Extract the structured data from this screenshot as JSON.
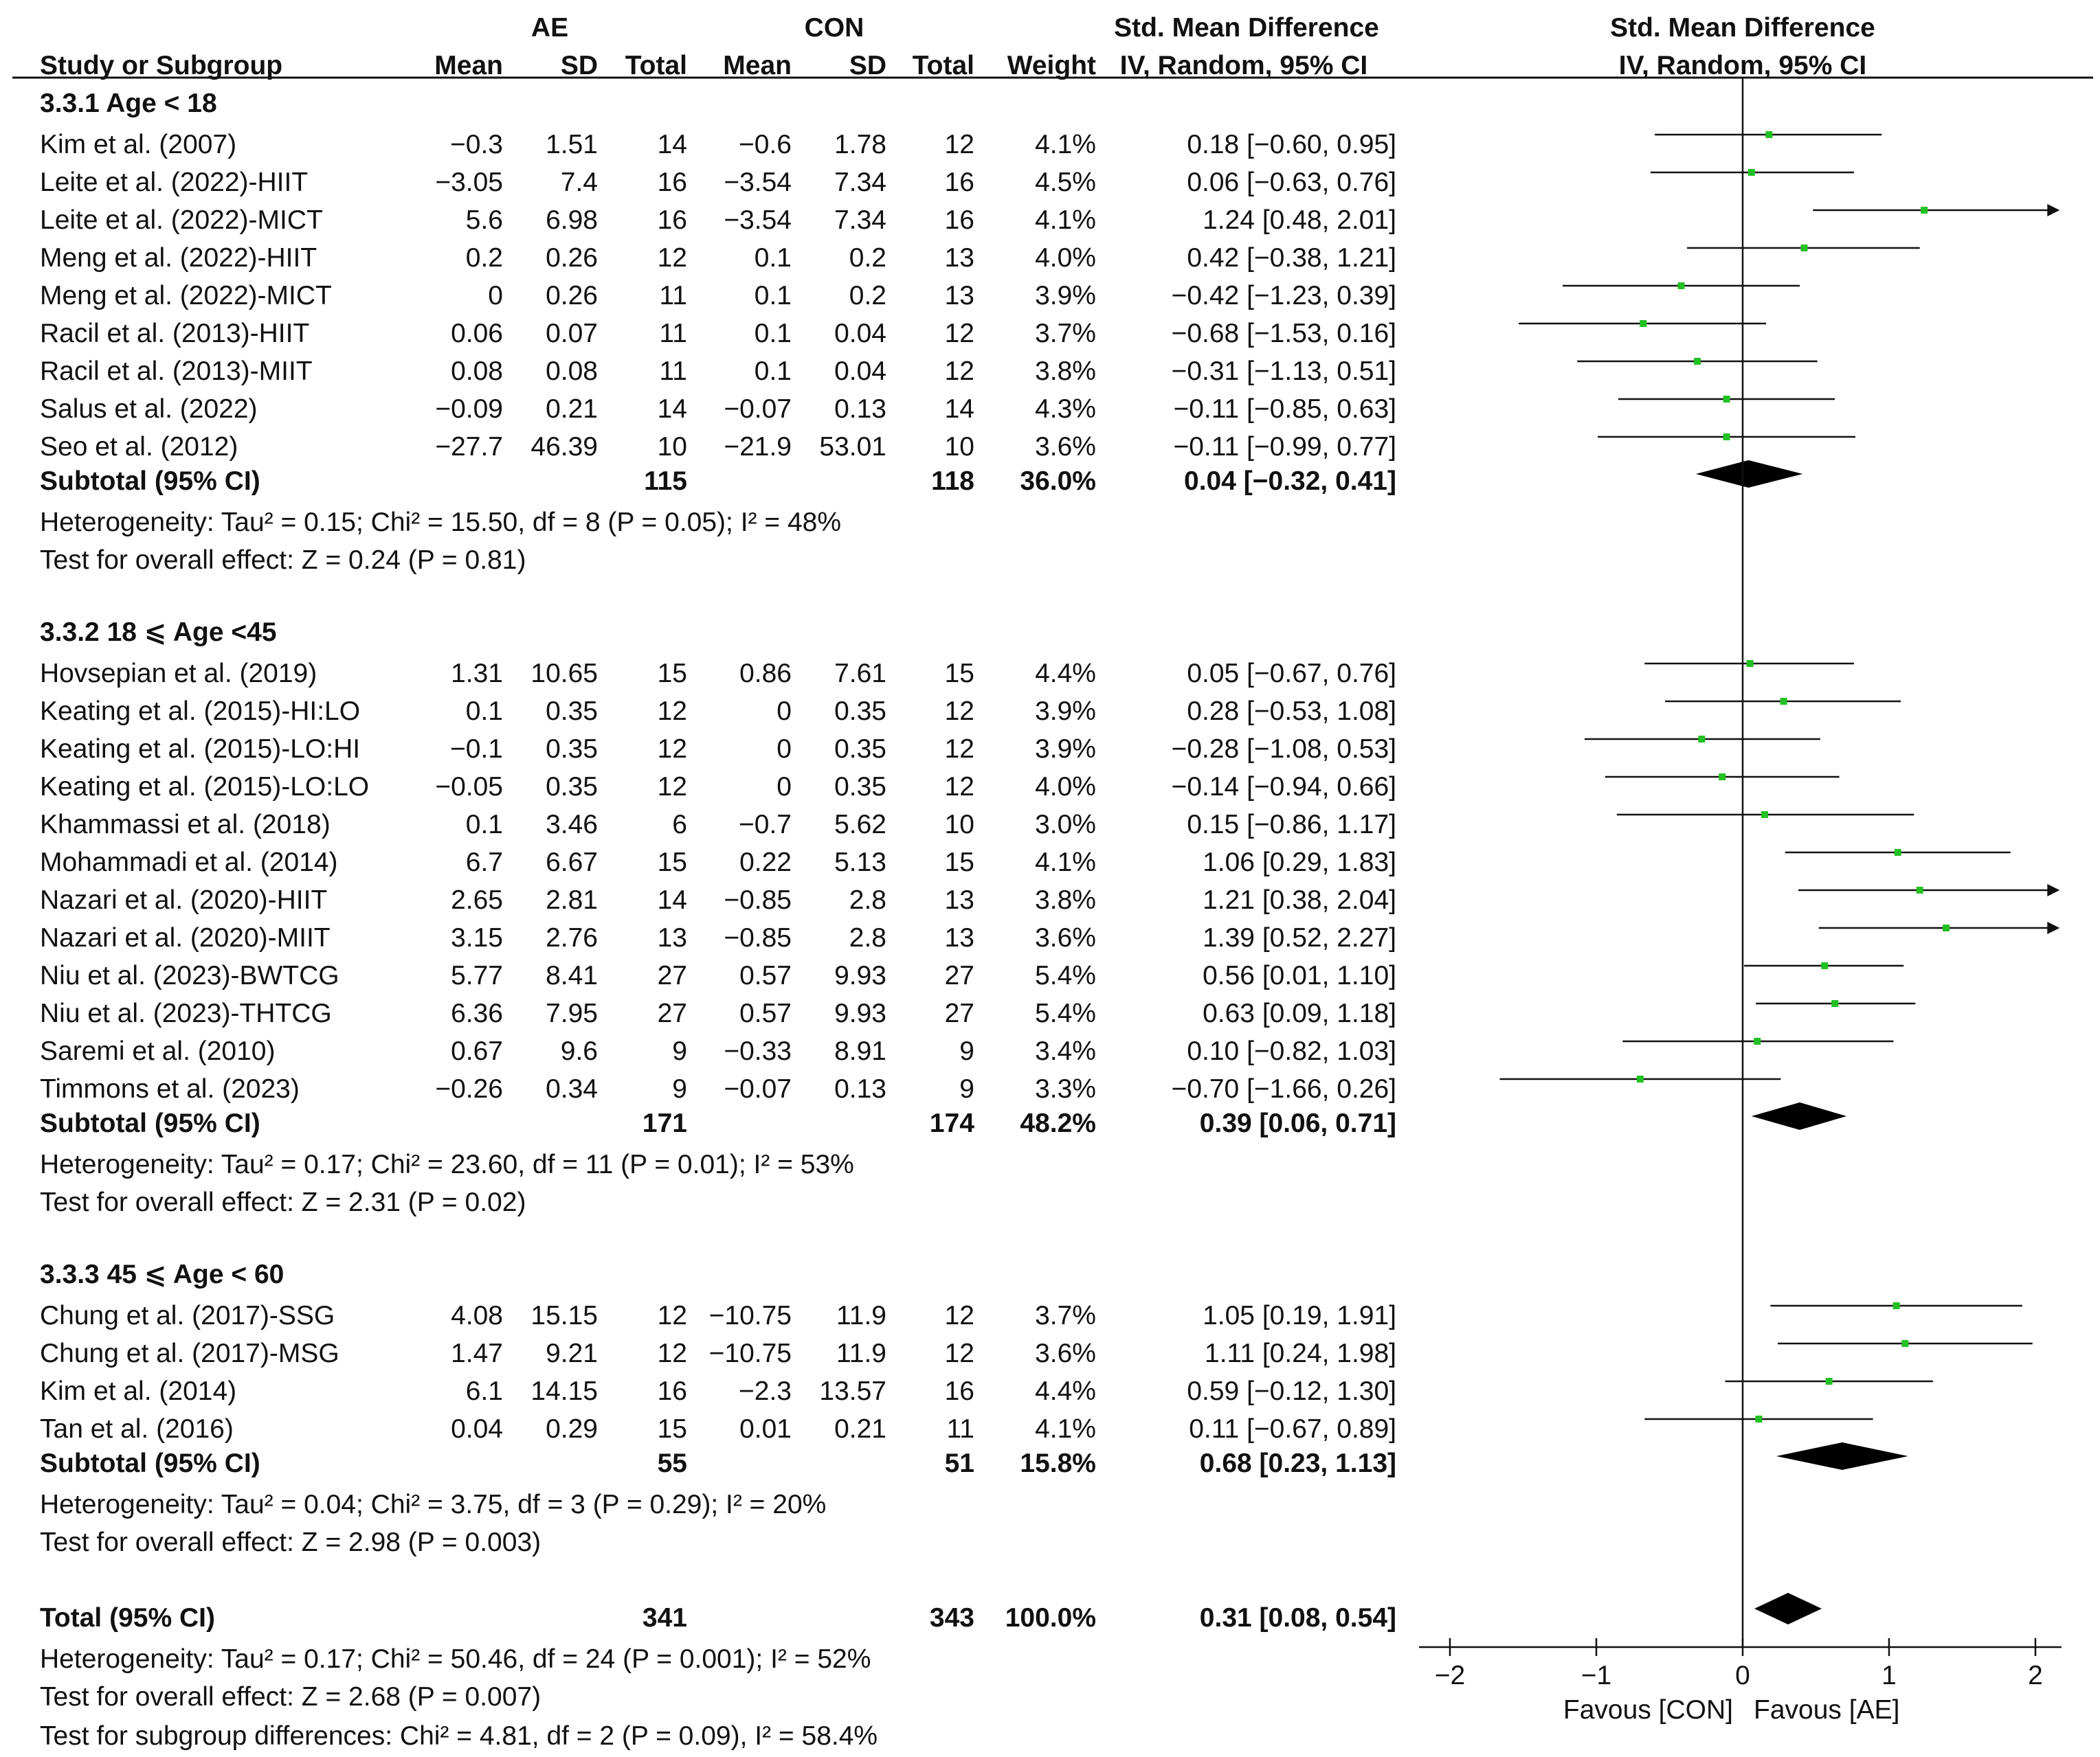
{
  "header": {
    "ae": "AE",
    "con": "CON",
    "smd_left": "Std. Mean Difference",
    "smd_right": "Std. Mean Difference",
    "col_study": "Study or Subgroup",
    "col_mean_ae": "Mean",
    "col_sd_ae": "SD",
    "col_total_ae": "Total",
    "col_mean_con": "Mean",
    "col_sd_con": "SD",
    "col_total_con": "Total",
    "col_weight": "Weight",
    "col_ci_left": "IV, Random, 95% CI",
    "col_ci_right": "IV, Random, 95% CI"
  },
  "subgroups": [
    {
      "title": "3.3.1 Age < 18",
      "studies": [
        {
          "name": "Kim et al. (2007)",
          "ae_mean": "−0.3",
          "ae_sd": "1.51",
          "ae_total": "14",
          "con_mean": "−0.6",
          "con_sd": "1.78",
          "con_total": "12",
          "weight": "4.1%",
          "ci": "0.18 [−0.60, 0.95]"
        },
        {
          "name": "Leite et al. (2022)-HIIT",
          "ae_mean": "−3.05",
          "ae_sd": "7.4",
          "ae_total": "16",
          "con_mean": "−3.54",
          "con_sd": "7.34",
          "con_total": "16",
          "weight": "4.5%",
          "ci": "0.06 [−0.63, 0.76]"
        },
        {
          "name": "Leite et al. (2022)-MICT",
          "ae_mean": "5.6",
          "ae_sd": "6.98",
          "ae_total": "16",
          "con_mean": "−3.54",
          "con_sd": "7.34",
          "con_total": "16",
          "weight": "4.1%",
          "ci": "1.24 [0.48, 2.01]"
        },
        {
          "name": "Meng et al. (2022)-HIIT",
          "ae_mean": "0.2",
          "ae_sd": "0.26",
          "ae_total": "12",
          "con_mean": "0.1",
          "con_sd": "0.2",
          "con_total": "13",
          "weight": "4.0%",
          "ci": "0.42 [−0.38, 1.21]"
        },
        {
          "name": "Meng et al. (2022)-MICT",
          "ae_mean": "0",
          "ae_sd": "0.26",
          "ae_total": "11",
          "con_mean": "0.1",
          "con_sd": "0.2",
          "con_total": "13",
          "weight": "3.9%",
          "ci": "−0.42 [−1.23, 0.39]"
        },
        {
          "name": "Racil et al. (2013)-HIIT",
          "ae_mean": "0.06",
          "ae_sd": "0.07",
          "ae_total": "11",
          "con_mean": "0.1",
          "con_sd": "0.04",
          "con_total": "12",
          "weight": "3.7%",
          "ci": "−0.68 [−1.53, 0.16]"
        },
        {
          "name": "Racil et al. (2013)-MIIT",
          "ae_mean": "0.08",
          "ae_sd": "0.08",
          "ae_total": "11",
          "con_mean": "0.1",
          "con_sd": "0.04",
          "con_total": "12",
          "weight": "3.8%",
          "ci": "−0.31 [−1.13, 0.51]"
        },
        {
          "name": "Salus et al. (2022)",
          "ae_mean": "−0.09",
          "ae_sd": "0.21",
          "ae_total": "14",
          "con_mean": "−0.07",
          "con_sd": "0.13",
          "con_total": "14",
          "weight": "4.3%",
          "ci": "−0.11 [−0.85, 0.63]"
        },
        {
          "name": "Seo et al. (2012)",
          "ae_mean": "−27.7",
          "ae_sd": "46.39",
          "ae_total": "10",
          "con_mean": "−21.9",
          "con_sd": "53.01",
          "con_total": "10",
          "weight": "3.6%",
          "ci": "−0.11 [−0.99, 0.77]"
        }
      ],
      "subtotal": {
        "label": "Subtotal (95% CI)",
        "ae_total": "115",
        "con_total": "118",
        "weight": "36.0%",
        "ci": "0.04 [−0.32, 0.41]"
      },
      "heterogeneity": "Heterogeneity: Tau² = 0.15; Chi² = 15.50, df = 8 (P = 0.05); I² = 48%",
      "overall": "Test for overall effect: Z = 0.24 (P = 0.81)"
    },
    {
      "title": "3.3.2 18 ⩽ Age <45",
      "studies": [
        {
          "name": "Hovsepian et al. (2019)",
          "ae_mean": "1.31",
          "ae_sd": "10.65",
          "ae_total": "15",
          "con_mean": "0.86",
          "con_sd": "7.61",
          "con_total": "15",
          "weight": "4.4%",
          "ci": "0.05 [−0.67, 0.76]"
        },
        {
          "name": "Keating et al. (2015)-HI:LO",
          "ae_mean": "0.1",
          "ae_sd": "0.35",
          "ae_total": "12",
          "con_mean": "0",
          "con_sd": "0.35",
          "con_total": "12",
          "weight": "3.9%",
          "ci": "0.28 [−0.53, 1.08]"
        },
        {
          "name": "Keating et al. (2015)-LO:HI",
          "ae_mean": "−0.1",
          "ae_sd": "0.35",
          "ae_total": "12",
          "con_mean": "0",
          "con_sd": "0.35",
          "con_total": "12",
          "weight": "3.9%",
          "ci": "−0.28 [−1.08, 0.53]"
        },
        {
          "name": "Keating et al. (2015)-LO:LO",
          "ae_mean": "−0.05",
          "ae_sd": "0.35",
          "ae_total": "12",
          "con_mean": "0",
          "con_sd": "0.35",
          "con_total": "12",
          "weight": "4.0%",
          "ci": "−0.14 [−0.94, 0.66]"
        },
        {
          "name": "Khammassi et al. (2018)",
          "ae_mean": "0.1",
          "ae_sd": "3.46",
          "ae_total": "6",
          "con_mean": "−0.7",
          "con_sd": "5.62",
          "con_total": "10",
          "weight": "3.0%",
          "ci": "0.15 [−0.86, 1.17]"
        },
        {
          "name": "Mohammadi et al. (2014)",
          "ae_mean": "6.7",
          "ae_sd": "6.67",
          "ae_total": "15",
          "con_mean": "0.22",
          "con_sd": "5.13",
          "con_total": "15",
          "weight": "4.1%",
          "ci": "1.06 [0.29, 1.83]"
        },
        {
          "name": "Nazari et al. (2020)-HIIT",
          "ae_mean": "2.65",
          "ae_sd": "2.81",
          "ae_total": "14",
          "con_mean": "−0.85",
          "con_sd": "2.8",
          "con_total": "13",
          "weight": "3.8%",
          "ci": "1.21 [0.38, 2.04]"
        },
        {
          "name": "Nazari et al. (2020)-MIIT",
          "ae_mean": "3.15",
          "ae_sd": "2.76",
          "ae_total": "13",
          "con_mean": "−0.85",
          "con_sd": "2.8",
          "con_total": "13",
          "weight": "3.6%",
          "ci": "1.39 [0.52, 2.27]"
        },
        {
          "name": "Niu et al. (2023)-BWTCG",
          "ae_mean": "5.77",
          "ae_sd": "8.41",
          "ae_total": "27",
          "con_mean": "0.57",
          "con_sd": "9.93",
          "con_total": "27",
          "weight": "5.4%",
          "ci": "0.56 [0.01, 1.10]"
        },
        {
          "name": "Niu et al. (2023)-THTCG",
          "ae_mean": "6.36",
          "ae_sd": "7.95",
          "ae_total": "27",
          "con_mean": "0.57",
          "con_sd": "9.93",
          "con_total": "27",
          "weight": "5.4%",
          "ci": "0.63 [0.09, 1.18]"
        },
        {
          "name": "Saremi et al. (2010)",
          "ae_mean": "0.67",
          "ae_sd": "9.6",
          "ae_total": "9",
          "con_mean": "−0.33",
          "con_sd": "8.91",
          "con_total": "9",
          "weight": "3.4%",
          "ci": "0.10 [−0.82, 1.03]"
        },
        {
          "name": "Timmons et al. (2023)",
          "ae_mean": "−0.26",
          "ae_sd": "0.34",
          "ae_total": "9",
          "con_mean": "−0.07",
          "con_sd": "0.13",
          "con_total": "9",
          "weight": "3.3%",
          "ci": "−0.70 [−1.66, 0.26]"
        }
      ],
      "subtotal": {
        "label": "Subtotal (95% CI)",
        "ae_total": "171",
        "con_total": "174",
        "weight": "48.2%",
        "ci": "0.39 [0.06, 0.71]"
      },
      "heterogeneity": "Heterogeneity: Tau² = 0.17; Chi² = 23.60, df = 11 (P = 0.01); I² = 53%",
      "overall": "Test for overall effect: Z = 2.31 (P = 0.02)"
    },
    {
      "title": "3.3.3 45 ⩽ Age < 60",
      "studies": [
        {
          "name": "Chung et al. (2017)-SSG",
          "ae_mean": "4.08",
          "ae_sd": "15.15",
          "ae_total": "12",
          "con_mean": "−10.75",
          "con_sd": "11.9",
          "con_total": "12",
          "weight": "3.7%",
          "ci": "1.05 [0.19, 1.91]"
        },
        {
          "name": "Chung et al. (2017)-MSG",
          "ae_mean": "1.47",
          "ae_sd": "9.21",
          "ae_total": "12",
          "con_mean": "−10.75",
          "con_sd": "11.9",
          "con_total": "12",
          "weight": "3.6%",
          "ci": "1.11 [0.24, 1.98]"
        },
        {
          "name": "Kim et al. (2014)",
          "ae_mean": "6.1",
          "ae_sd": "14.15",
          "ae_total": "16",
          "con_mean": "−2.3",
          "con_sd": "13.57",
          "con_total": "16",
          "weight": "4.4%",
          "ci": "0.59 [−0.12, 1.30]"
        },
        {
          "name": "Tan et al. (2016)",
          "ae_mean": "0.04",
          "ae_sd": "0.29",
          "ae_total": "15",
          "con_mean": "0.01",
          "con_sd": "0.21",
          "con_total": "11",
          "weight": "4.1%",
          "ci": "0.11 [−0.67, 0.89]"
        }
      ],
      "subtotal": {
        "label": "Subtotal (95% CI)",
        "ae_total": "55",
        "con_total": "51",
        "weight": "15.8%",
        "ci": "0.68 [0.23, 1.13]"
      },
      "heterogeneity": "Heterogeneity: Tau² = 0.04; Chi² = 3.75, df = 3 (P = 0.29); I² = 20%",
      "overall": "Test for overall effect: Z = 2.98 (P = 0.003)"
    }
  ],
  "total": {
    "label": "Total (95% CI)",
    "ae_total": "341",
    "con_total": "343",
    "weight": "100.0%",
    "ci": "0.31 [0.08, 0.54]"
  },
  "total_heterogeneity": "Heterogeneity: Tau² = 0.17; Chi² = 50.46, df = 24 (P = 0.001); I² = 52%",
  "total_overall": "Test for overall effect: Z = 2.68 (P = 0.007)",
  "subgroup_diff": "Test for subgroup differences: Chi² = 4.81, df = 2 (P = 0.09), I² = 58.4%",
  "chart_data": {
    "type": "forest",
    "title": "Std. Mean Difference IV, Random, 95% CI",
    "xlim": [
      -2,
      2
    ],
    "xticks": [
      -2,
      -1,
      0,
      1,
      2
    ],
    "xtick_labels": [
      "−2",
      "−1",
      "0",
      "1",
      "2"
    ],
    "favours_left": "Favous [CON]",
    "favours_right": "Favous [AE]",
    "point_color": "#22c022",
    "series": [
      {
        "name": "3.3.1 Age < 18",
        "points": [
          [
            0.18,
            -0.6,
            0.95
          ],
          [
            0.06,
            -0.63,
            0.76
          ],
          [
            1.24,
            0.48,
            2.01
          ],
          [
            0.42,
            -0.38,
            1.21
          ],
          [
            -0.42,
            -1.23,
            0.39
          ],
          [
            -0.68,
            -1.53,
            0.16
          ],
          [
            -0.31,
            -1.13,
            0.51
          ],
          [
            -0.11,
            -0.85,
            0.63
          ],
          [
            -0.11,
            -0.99,
            0.77
          ]
        ],
        "pooled": [
          0.04,
          -0.32,
          0.41
        ]
      },
      {
        "name": "3.3.2 18 <= Age < 45",
        "points": [
          [
            0.05,
            -0.67,
            0.76
          ],
          [
            0.28,
            -0.53,
            1.08
          ],
          [
            -0.28,
            -1.08,
            0.53
          ],
          [
            -0.14,
            -0.94,
            0.66
          ],
          [
            0.15,
            -0.86,
            1.17
          ],
          [
            1.06,
            0.29,
            1.83
          ],
          [
            1.21,
            0.38,
            2.04
          ],
          [
            1.39,
            0.52,
            2.27
          ],
          [
            0.56,
            0.01,
            1.1
          ],
          [
            0.63,
            0.09,
            1.18
          ],
          [
            0.1,
            -0.82,
            1.03
          ],
          [
            -0.7,
            -1.66,
            0.26
          ]
        ],
        "pooled": [
          0.39,
          0.06,
          0.71
        ]
      },
      {
        "name": "3.3.3 45 <= Age < 60",
        "points": [
          [
            1.05,
            0.19,
            1.91
          ],
          [
            1.11,
            0.24,
            1.98
          ],
          [
            0.59,
            -0.12,
            1.3
          ],
          [
            0.11,
            -0.67,
            0.89
          ]
        ],
        "pooled": [
          0.68,
          0.23,
          1.13
        ]
      }
    ],
    "overall": [
      0.31,
      0.08,
      0.54
    ]
  }
}
